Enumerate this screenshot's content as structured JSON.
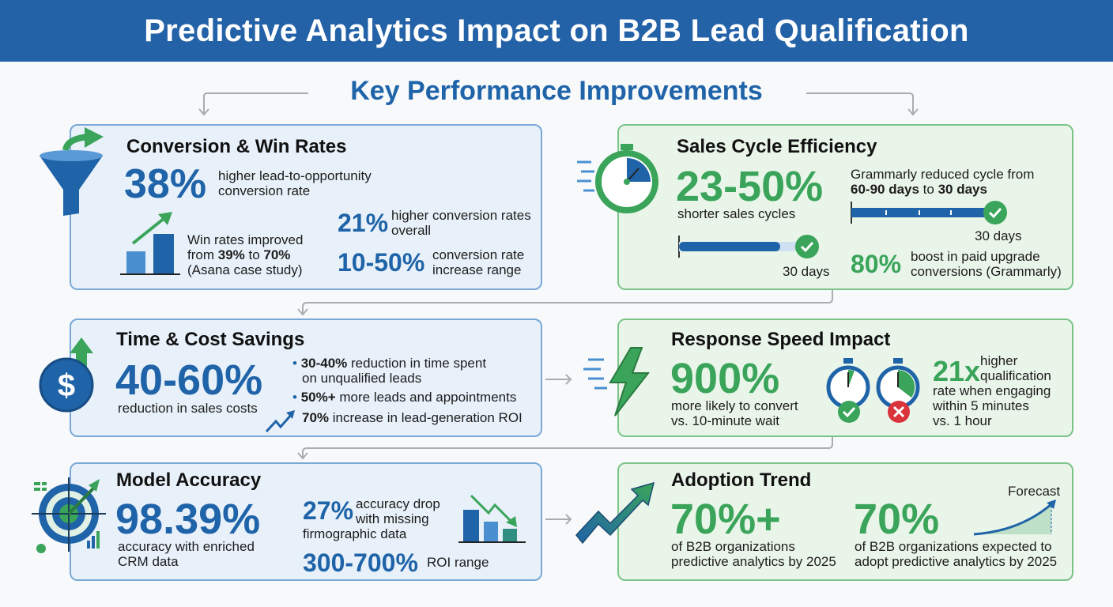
{
  "header": {
    "title": "Predictive Analytics Impact on B2B Lead Qualification"
  },
  "subtitle": "Key Performance Improvements",
  "colors": {
    "header": "#2462a8",
    "blue": "#1f63a8",
    "green": "#3aa55a",
    "red": "#d8343a"
  },
  "conversion": {
    "title": "Conversion & Win Rates",
    "main_value": "38%",
    "main_desc": [
      "higher lead-to-opportunity",
      "conversion rate"
    ],
    "win_lines": [
      "Win rates improved",
      "from ",
      "39%",
      " to ",
      "70%",
      "(Asana case study)"
    ],
    "stat2_value": "21%",
    "stat2_desc": [
      "higher conversion rates",
      "overall"
    ],
    "stat3_value": "10-50%",
    "stat3_desc": [
      "conversion rate",
      "increase range"
    ],
    "icons": [
      "funnel-icon",
      "bar-chart-up-icon"
    ]
  },
  "sales_cycle": {
    "title": "Sales Cycle Efficiency",
    "main_value": "23-50%",
    "main_desc": "shorter sales cycles",
    "bar_label": "30 days",
    "grammarly_line1": "Grammarly reduced cycle from",
    "grammarly_bold1": "60-90 days",
    "grammarly_to": " to ",
    "grammarly_bold2": "30 days",
    "bar2_label": "30 days",
    "stat2_value": "80%",
    "stat2_desc": [
      "boost in paid upgrade",
      "conversions (Grammarly)"
    ],
    "icons": [
      "stopwatch-icon",
      "check-icon"
    ]
  },
  "time_cost": {
    "title": "Time & Cost Savings",
    "main_value": "40-60%",
    "main_desc": "reduction in sales costs",
    "bullets": [
      {
        "bold": "30-40%",
        "text": " reduction in time spent",
        "text2": "on unqualified leads"
      },
      {
        "bold": "50%+",
        "text": " more leads and appointments"
      },
      {
        "bold": "70%",
        "text": " increase in lead-generation ROI"
      }
    ],
    "icons": [
      "dollar-icon",
      "trend-up-icon"
    ]
  },
  "response": {
    "title": "Response Speed Impact",
    "main_value": "900%",
    "main_desc": [
      "more likely to convert",
      "vs. 10-minute wait"
    ],
    "stat2_value": "21x",
    "stat2_desc_top": [
      "higher",
      "qualification"
    ],
    "stat2_desc": [
      "rate when engaging",
      "within 5 minutes",
      "vs. 1 hour"
    ],
    "icons": [
      "lightning-icon",
      "stopwatch-check-icon",
      "stopwatch-x-icon"
    ]
  },
  "accuracy": {
    "title": "Model Accuracy",
    "main_value": "98.39%",
    "main_desc": [
      "accuracy with enriched",
      "CRM data"
    ],
    "stat2_value": "27%",
    "stat2_desc": [
      "accuracy drop",
      "with missing",
      "firmographic data"
    ],
    "stat3_value": "300-700%",
    "stat3_desc": "ROI range",
    "icons": [
      "target-icon",
      "bar-chart-down-icon"
    ]
  },
  "adoption": {
    "title": "Adoption Trend",
    "stat1_value": "70%+",
    "stat1_desc": [
      "of B2B organizations",
      "predictive analytics by 2025"
    ],
    "stat2_value": "70%",
    "stat2_desc": [
      "of B2B organizations expected to",
      "adopt predictive analytics by 2025"
    ],
    "forecast_label": "Forecast",
    "icons": [
      "trend-arrow-icon",
      "forecast-curve-icon"
    ]
  }
}
